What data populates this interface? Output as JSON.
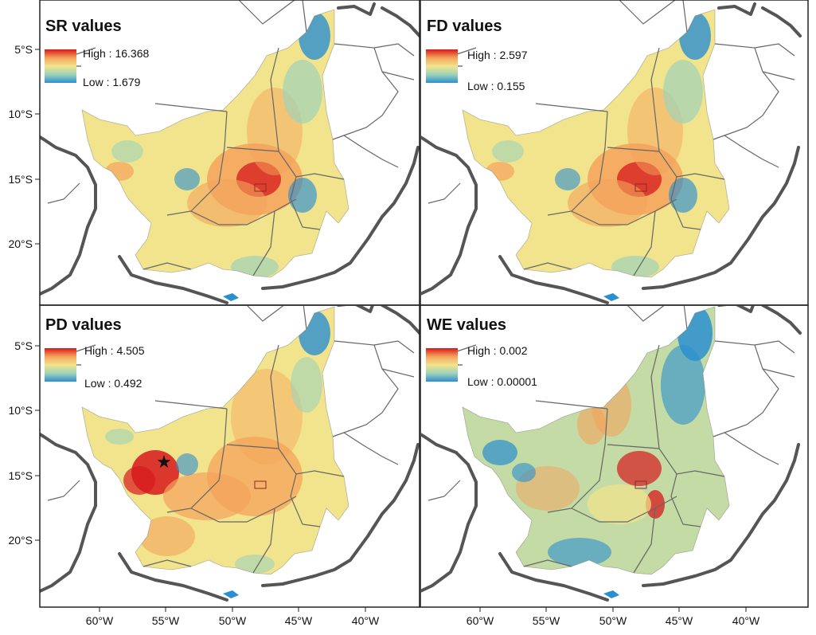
{
  "panels": [
    {
      "id": "sr",
      "title": "SR values",
      "high": "High : 16.368",
      "low": "Low : 1.679",
      "highlight": "central"
    },
    {
      "id": "fd",
      "title": "FD values",
      "high": "High : 2.597",
      "low": "Low : 0.155",
      "highlight": "central"
    },
    {
      "id": "pd",
      "title": "PD values",
      "high": "High : 4.505",
      "low": "Low : 0.492",
      "highlight": "west"
    },
    {
      "id": "we",
      "title": "WE values",
      "high": "High : 0.002",
      "low": "Low : 0.00001",
      "highlight": "scattered"
    }
  ],
  "y_ticks": [
    "5°S",
    "10°S",
    "15°S",
    "20°S"
  ],
  "x_ticks": [
    "60°W",
    "55°W",
    "50°W",
    "45°W",
    "40°W"
  ],
  "colors": {
    "high": "#d7191c",
    "mid_high": "#f4a35b",
    "mid": "#f2e48c",
    "mid_low": "#9fd3b9",
    "low": "#2b8fcf",
    "country_border": "#555555",
    "state_border": "#666666"
  },
  "markers": [
    {
      "panel": "pd",
      "symbol": "★",
      "name": "star-marker"
    }
  ]
}
